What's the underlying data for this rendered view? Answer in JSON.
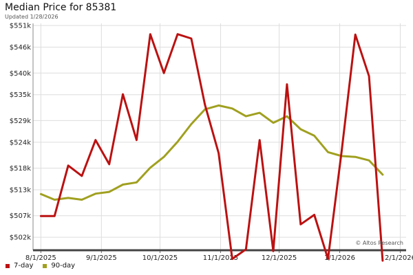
{
  "chart_data": {
    "type": "line",
    "title": "Median Price for 85381",
    "subtitle": "Updated 1/28/2026",
    "watermark": "© Altos Research",
    "xlabel": "",
    "ylabel": "",
    "x_tick_labels": [
      "8/1/2025",
      "9/1/2025",
      "10/1/2025",
      "11/1/2025",
      "12/1/2025",
      "1/1/2026",
      "2/1/2026"
    ],
    "x_tick_dates": [
      "2025-08-01",
      "2025-09-01",
      "2025-10-01",
      "2025-11-01",
      "2025-12-01",
      "2026-01-01",
      "2026-02-01"
    ],
    "y_tick_labels": [
      "$502k",
      "$507k",
      "$513k",
      "$518k",
      "$524k",
      "$529k",
      "$535k",
      "$540k",
      "$546k",
      "$551k"
    ],
    "y_tick_values": [
      502000,
      507000,
      513000,
      518000,
      524000,
      529000,
      535000,
      540000,
      546000,
      551000
    ],
    "xlim": [
      "2025-07-28",
      "2026-02-04"
    ],
    "ylim": [
      499000,
      551500
    ],
    "grid": true,
    "legend_position": "bottom-left",
    "x": [
      "2025-08-01",
      "2025-08-08",
      "2025-08-15",
      "2025-08-22",
      "2025-08-29",
      "2025-09-05",
      "2025-09-12",
      "2025-09-19",
      "2025-09-26",
      "2025-10-03",
      "2025-10-10",
      "2025-10-17",
      "2025-10-24",
      "2025-10-31",
      "2025-11-07",
      "2025-11-14",
      "2025-11-21",
      "2025-11-28",
      "2025-12-05",
      "2025-12-12",
      "2025-12-19",
      "2025-12-26",
      "2026-01-02",
      "2026-01-09",
      "2026-01-16",
      "2026-01-23"
    ],
    "series": [
      {
        "name": "7-day",
        "color": "#bb1111",
        "values": [
          506900,
          506900,
          518600,
          516200,
          524500,
          518900,
          535100,
          524500,
          549000,
          540000,
          549000,
          548000,
          532700,
          521500,
          497000,
          499200,
          524500,
          498800,
          537400,
          505000,
          507200,
          497000,
          522000,
          548900,
          539300,
          496600
        ]
      },
      {
        "name": "90-day",
        "color": "#a0a020",
        "values": [
          512000,
          510700,
          511100,
          510700,
          512100,
          512500,
          514200,
          514700,
          518100,
          520600,
          524100,
          528200,
          531600,
          532500,
          531800,
          530000,
          530800,
          528500,
          530000,
          527000,
          525500,
          521700,
          520800,
          520600,
          519800,
          516500
        ]
      }
    ]
  }
}
